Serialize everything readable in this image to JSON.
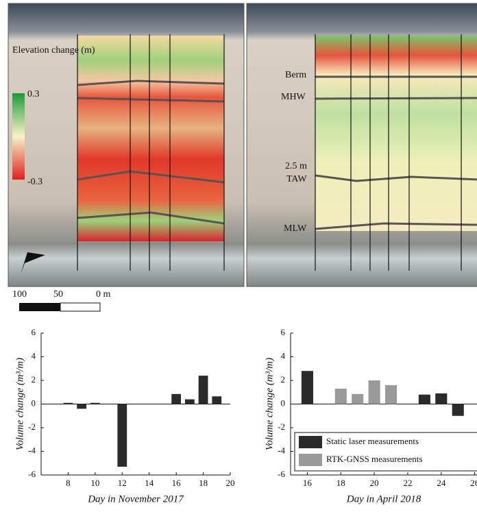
{
  "map_labels": {
    "legend_title": "Elevation change (m)",
    "legend_max": "0.3",
    "legend_min": "-0.3",
    "berm": "Berm",
    "mhw": "MHW",
    "taw_1": "2.5 m",
    "taw_2": "TAW",
    "mlw": "MLW",
    "scale_100": "100",
    "scale_50": "50",
    "scale_0": "0 m"
  },
  "chart_data": [
    {
      "type": "bar",
      "xlabel": "Day in November 2017",
      "ylabel": "Volume change (m³/m)",
      "x": [
        8,
        9,
        10,
        12,
        16,
        17,
        18,
        19
      ],
      "values": [
        0.1,
        -0.4,
        0.1,
        -5.3,
        0.85,
        0.4,
        2.4,
        0.65
      ],
      "color": "#2b2b2b",
      "xlim": [
        6,
        20
      ],
      "xticks": [
        8,
        10,
        12,
        14,
        16,
        18,
        20
      ],
      "ylim": [
        -6,
        6
      ],
      "yticks": [
        -6,
        -4,
        -2,
        0,
        2,
        4,
        6
      ]
    },
    {
      "type": "bar",
      "xlabel": "Day in April 2018",
      "ylabel": "Volume change (m³/m)",
      "series": [
        {
          "name": "Static laser measurements",
          "color": "#2b2b2b",
          "x": [
            16,
            23,
            24,
            25
          ],
          "values": [
            2.8,
            0.8,
            0.9,
            -1.0
          ]
        },
        {
          "name": "RTK-GNSS measurements",
          "color": "#9a9a9a",
          "x": [
            18,
            19,
            20,
            21
          ],
          "values": [
            1.3,
            0.85,
            2.0,
            1.6
          ]
        }
      ],
      "xlim": [
        15,
        26.3
      ],
      "xticks": [
        16,
        18,
        20,
        22,
        24,
        26
      ],
      "ylim": [
        -6,
        6
      ],
      "yticks": [
        -6,
        -4,
        -2,
        0,
        2,
        4,
        6
      ],
      "legend": "lower right"
    }
  ]
}
